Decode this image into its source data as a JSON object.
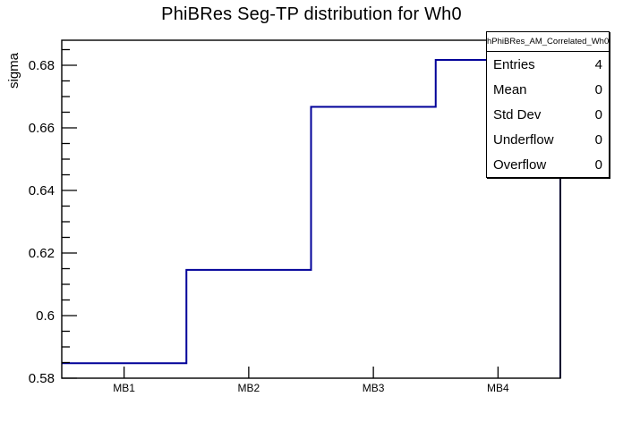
{
  "chart_data": {
    "type": "line",
    "style": "step-histogram",
    "title": "PhiBRes Seg-TP distribution for Wh0",
    "xlabel": "",
    "ylabel": "sigma",
    "categories": [
      "MB1",
      "MB2",
      "MB3",
      "MB4"
    ],
    "values": [
      0.5848,
      0.6146,
      0.6667,
      0.6817
    ],
    "ylim": [
      0.58,
      0.688
    ],
    "y_ticks": [
      {
        "v": 0.58,
        "label": "0.58"
      },
      {
        "v": 0.6,
        "label": "0.6"
      },
      {
        "v": 0.62,
        "label": "0.62"
      },
      {
        "v": 0.64,
        "label": "0.64"
      },
      {
        "v": 0.66,
        "label": "0.66"
      },
      {
        "v": 0.68,
        "label": "0.68"
      }
    ],
    "y_minor_step": 0.005,
    "grid": false,
    "line_color": "#000099",
    "frame_color": "#000000",
    "background_color": "#ffffff"
  },
  "stats_box": {
    "title": "hPhiBRes_AM_Correlated_Wh0",
    "rows": [
      {
        "label": "Entries",
        "value": "4"
      },
      {
        "label": "Mean",
        "value": "0"
      },
      {
        "label": "Std Dev",
        "value": "0"
      },
      {
        "label": "Underflow",
        "value": "0"
      },
      {
        "label": "Overflow",
        "value": "0"
      }
    ]
  }
}
